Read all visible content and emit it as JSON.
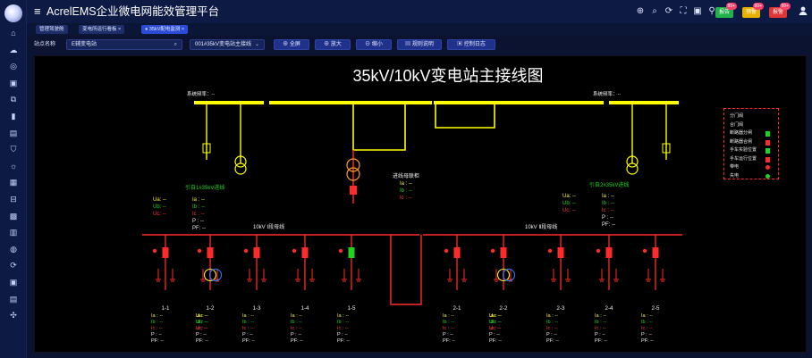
{
  "app": {
    "title": "AcrelEMS企业微电网能效管理平台",
    "menu_icon": "≡"
  },
  "colors": {
    "bg": "#0b1330",
    "sidebar": "#0d1a44",
    "accent": "#2b4ad6",
    "busbar": "#ffff00",
    "line_red": "#ff2a2a",
    "line_green": "#21d321",
    "label_green": "#21d321",
    "label_yellow": "#f3f13b",
    "label_orange": "#ff9a2a",
    "label_red": "#ff3d3d",
    "label_white": "#f0f0f0"
  },
  "sidebar": {
    "icons": [
      "home-icon",
      "cloud-icon",
      "target-icon",
      "folder-icon",
      "tree-icon",
      "bar-chart-icon",
      "layers-icon",
      "shield-icon",
      "bulb-icon",
      "grid-icon",
      "device-icon",
      "image-icon",
      "table-icon",
      "camera-icon",
      "refresh-icon",
      "document-icon",
      "report-icon",
      "tools-icon"
    ],
    "glyphs": [
      "⌂",
      "☁",
      "◎",
      "▣",
      "⧉",
      "▮",
      "▤",
      "⛉",
      "☼",
      "▦",
      "⊟",
      "▩",
      "▥",
      "◍",
      "⟳",
      "▣",
      "▤",
      "✣"
    ]
  },
  "top_icons": {
    "items": [
      {
        "name": "settings-icon",
        "glyph": "⊕"
      },
      {
        "name": "search-icon",
        "glyph": "⌕"
      },
      {
        "name": "refresh-icon",
        "glyph": "⟳"
      },
      {
        "name": "fullscreen-icon",
        "glyph": "⛶"
      },
      {
        "name": "image-icon",
        "glyph": "▣"
      },
      {
        "name": "user-pin-icon",
        "glyph": "⚲"
      }
    ]
  },
  "badges": [
    {
      "label": "报告",
      "count": "99+",
      "color": "#22b24c"
    },
    {
      "label": "预警",
      "count": "99+",
      "color": "#e6b100"
    },
    {
      "label": "报警",
      "count": "99+",
      "color": "#e03535"
    }
  ],
  "user_icon": "avatar-icon",
  "tabs": [
    {
      "label": "管理驾驶舱",
      "active": false
    },
    {
      "label": "变电所运行看板 ×",
      "active": false
    },
    {
      "label": "● 35kV配电监测 ×",
      "active": true
    }
  ],
  "toolbar": {
    "station_label": "站点名称",
    "station_value": "E辅变电站",
    "diagram_select": "001#35kV变电站主接线",
    "fullscreen_btn": "⊕ 全屏",
    "zoom_in_btn": "⊕ 放大",
    "zoom_out_btn": "⊖ 缩小",
    "rules_btn": "▤ 规则说明",
    "log_btn": "▣ 控制日志"
  },
  "diagram": {
    "title": "35kV/10kV变电站主接线图",
    "sys_freq_left": "系统频率：--",
    "sys_freq_right": "系统频率：--",
    "left_incoming": "1引自1号35kV进线",
    "right_incoming": "2引自2号35kV进线",
    "left_incoming_display": "引自1#35kV进线",
    "right_incoming_display": "引自2#35kV进线",
    "tie_label": "进线母联柜",
    "bus_left_label": "10kV Ⅰ段母线",
    "bus_right_label": "10kV Ⅱ段母线",
    "meter_left": {
      "a": "Ua:  --",
      "b": "Ub:  --",
      "c": "Uc:  --"
    },
    "meter_left2": {
      "a": "Ia :  --",
      "b": "Ib :  --",
      "c": "Ic :  --",
      "p": "P :  --",
      "pf": "PF:  --"
    },
    "meter_tie": {
      "a": "Ia :  --",
      "b": "Ib :  --",
      "c": "Ic :  --"
    },
    "meter_right": {
      "a": "Ua:  --",
      "b": "Ub:  --",
      "c": "Uc:  --"
    },
    "meter_right2": {
      "a": "Ia :  --",
      "b": "Ib :  --",
      "c": "Ic :  --",
      "p": "P :  --",
      "pf": "PF:  --"
    },
    "feeders": [
      {
        "id": "1-1"
      },
      {
        "id": "1-2"
      },
      {
        "id": "1-3"
      },
      {
        "id": "1-4"
      },
      {
        "id": "1-5"
      },
      {
        "id": "2-1"
      },
      {
        "id": "2-2"
      },
      {
        "id": "2-3"
      },
      {
        "id": "2-4"
      },
      {
        "id": "2-5"
      }
    ],
    "feeder_meter": {
      "a": "Ia :  --",
      "b": "Ib :  --",
      "c": "Ic :  --",
      "p": "P :  --",
      "pf": "PF:  --",
      "ua": "Ua:  --",
      "ub": "Ub:  --",
      "uc": "Uc:  --"
    }
  },
  "legend": {
    "items": [
      {
        "label": "分门阀",
        "swatch": "none"
      },
      {
        "label": "合门阀",
        "swatch": "none"
      },
      {
        "label": "断路器分闸",
        "swatch": "#21d321"
      },
      {
        "label": "断路器合闸",
        "swatch": "#ff2a2a"
      },
      {
        "label": "手车实验位置",
        "swatch": "#21d321"
      },
      {
        "label": "手车运行位置",
        "swatch": "#ff2a2a"
      },
      {
        "label": "带电",
        "dot": "#ff2a2a"
      },
      {
        "label": "失电",
        "dot": "#21d321"
      }
    ]
  }
}
